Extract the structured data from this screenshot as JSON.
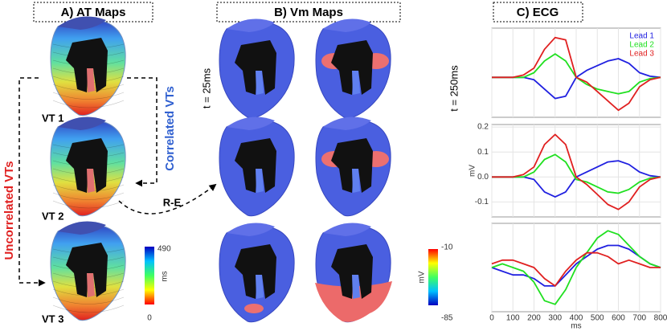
{
  "panels": {
    "a": {
      "header": "A) AT Maps",
      "vt_labels": [
        "VT 1",
        "VT 2",
        "VT 3"
      ],
      "correlated": "Correlated VTs",
      "uncorrelated": "Uncorrelated VTs",
      "transition": "R-E",
      "colorbar": {
        "max": 490,
        "min": 0,
        "unit": "ms"
      }
    },
    "b": {
      "header": "B) Vm Maps",
      "time_left": "t = 25ms",
      "time_right": "t = 250ms",
      "colorbar": {
        "max": -10,
        "min": -85,
        "unit": "mV"
      }
    },
    "c": {
      "header": "C) ECG"
    }
  },
  "chart_data": [
    {
      "type": "line",
      "x": [
        0,
        50,
        100,
        150,
        200,
        250,
        300,
        350,
        400,
        450,
        500,
        550,
        600,
        650,
        700,
        750,
        800
      ],
      "ylim": [
        -0.17,
        0.21
      ],
      "legend": "upper right",
      "series": [
        {
          "name": "Lead 1",
          "color": "#2020e0",
          "values": [
            0,
            0,
            0,
            0,
            -0.01,
            -0.05,
            -0.09,
            -0.08,
            0,
            0.03,
            0.05,
            0.07,
            0.08,
            0.06,
            0.02,
            0.005,
            0
          ]
        },
        {
          "name": "Lead 2",
          "color": "#20e020",
          "values": [
            0,
            0,
            0,
            0,
            0.02,
            0.07,
            0.1,
            0.07,
            0,
            -0.03,
            -0.05,
            -0.06,
            -0.07,
            -0.06,
            -0.02,
            -0.005,
            0
          ]
        },
        {
          "name": "Lead 3",
          "color": "#e02020",
          "values": [
            0,
            0,
            0,
            0.01,
            0.04,
            0.12,
            0.17,
            0.16,
            0,
            -0.02,
            -0.06,
            -0.1,
            -0.14,
            -0.11,
            -0.04,
            -0.01,
            0
          ]
        }
      ]
    },
    {
      "type": "line",
      "x": [
        0,
        50,
        100,
        150,
        200,
        250,
        300,
        350,
        400,
        450,
        500,
        550,
        600,
        650,
        700,
        750,
        800
      ],
      "ylim": [
        -0.16,
        0.21
      ],
      "yticks": [
        {
          "value": 0.2,
          "label": "0.2"
        },
        {
          "value": 0.1,
          "label": "0.1"
        },
        {
          "value": 0,
          "label": "0.0"
        },
        {
          "value": -0.1,
          "label": "-0.1"
        }
      ],
      "y_label": "mV",
      "series": [
        {
          "color": "#2020e0",
          "values": [
            0,
            0,
            0,
            0,
            -0.01,
            -0.06,
            -0.08,
            -0.06,
            0,
            0.02,
            0.04,
            0.06,
            0.065,
            0.05,
            0.02,
            0.005,
            0
          ]
        },
        {
          "color": "#20e020",
          "values": [
            0,
            0,
            0,
            0,
            0.02,
            0.07,
            0.09,
            0.06,
            -0.01,
            -0.02,
            -0.04,
            -0.06,
            -0.065,
            -0.05,
            -0.02,
            -0.005,
            0
          ]
        },
        {
          "color": "#e02020",
          "values": [
            0,
            0,
            0,
            0.01,
            0.04,
            0.13,
            0.17,
            0.13,
            0,
            -0.03,
            -0.07,
            -0.11,
            -0.13,
            -0.1,
            -0.04,
            -0.01,
            0
          ]
        }
      ]
    },
    {
      "type": "line",
      "x": [
        0,
        50,
        100,
        150,
        200,
        250,
        300,
        350,
        400,
        450,
        500,
        550,
        600,
        650,
        700,
        750,
        800
      ],
      "ylim": [
        -0.12,
        0.12
      ],
      "xticks": [
        0,
        100,
        200,
        300,
        400,
        500,
        600,
        700,
        800
      ],
      "x_label": "ms",
      "series": [
        {
          "color": "#2020e0",
          "values": [
            0,
            -0.01,
            -0.02,
            -0.02,
            -0.03,
            -0.05,
            -0.05,
            -0.02,
            0.01,
            0.03,
            0.05,
            0.06,
            0.06,
            0.05,
            0.03,
            0.01,
            0
          ]
        },
        {
          "color": "#20e020",
          "values": [
            0,
            0.01,
            0,
            -0.01,
            -0.04,
            -0.09,
            -0.1,
            -0.06,
            0,
            0.04,
            0.08,
            0.1,
            0.09,
            0.06,
            0.03,
            0.01,
            0
          ]
        },
        {
          "color": "#e02020",
          "values": [
            0.01,
            0.02,
            0.02,
            0.01,
            0,
            -0.03,
            -0.05,
            -0.01,
            0.02,
            0.04,
            0.04,
            0.03,
            0.01,
            0.02,
            0.01,
            0,
            0
          ]
        }
      ]
    }
  ]
}
